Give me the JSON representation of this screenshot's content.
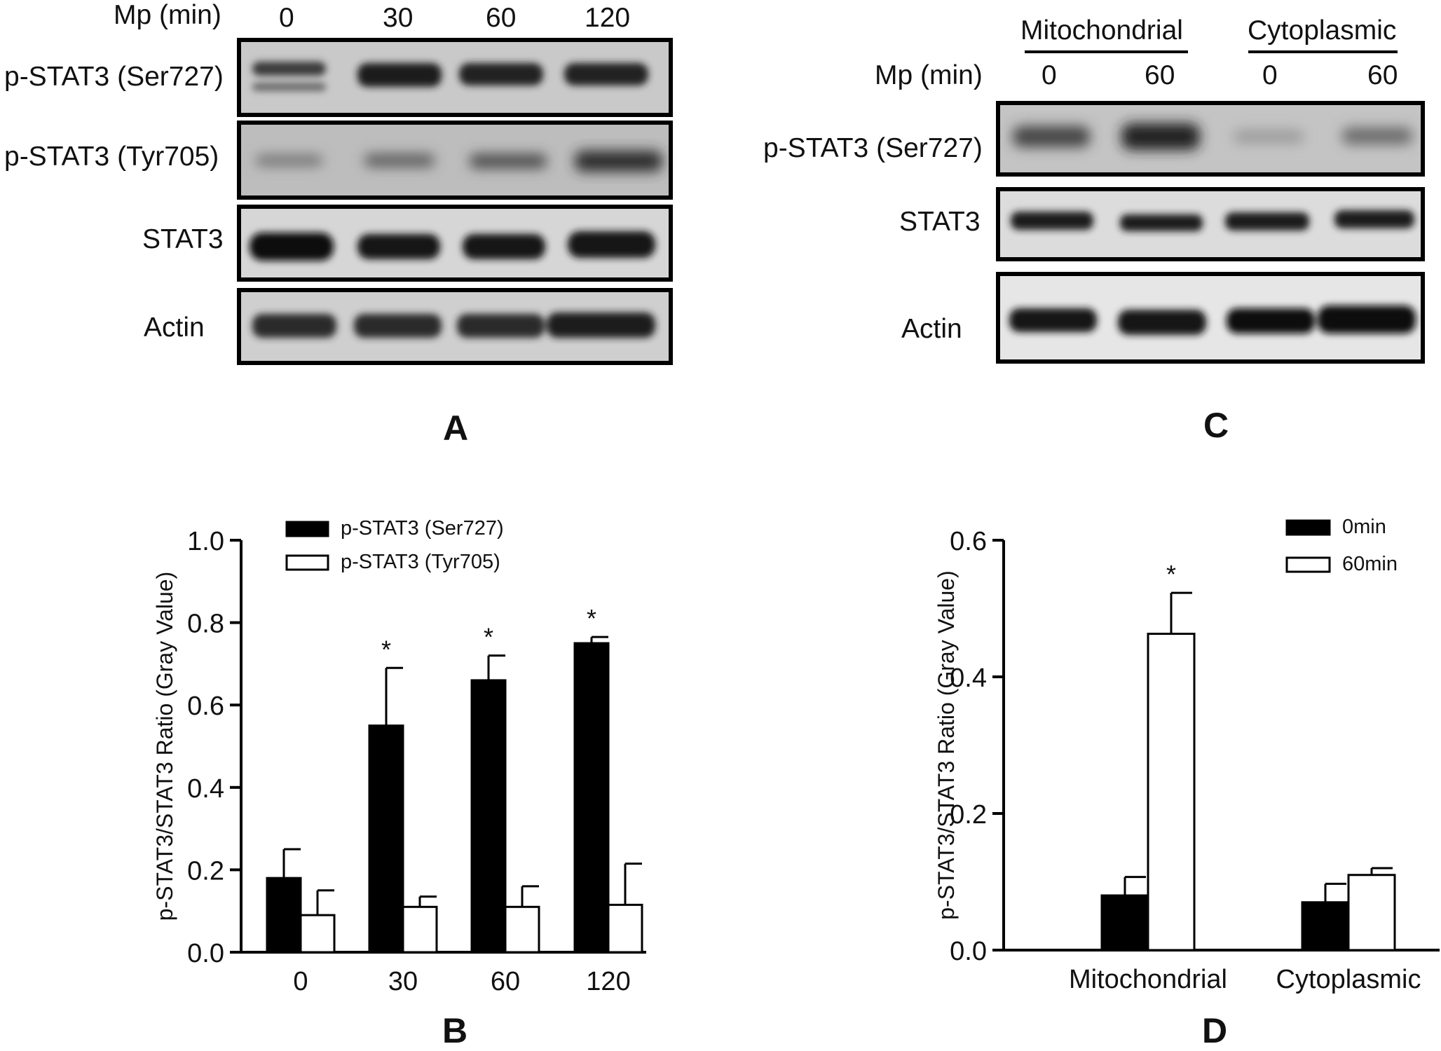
{
  "panel_a": {
    "letter": "A",
    "mp_label": "Mp (min)",
    "lanes": [
      "0",
      "30",
      "60",
      "120"
    ],
    "rows": [
      "p-STAT3 (Ser727)",
      "p-STAT3 (Tyr705)",
      "STAT3",
      "Actin"
    ]
  },
  "panel_c": {
    "letter": "C",
    "fraction_labels": [
      "Mitochondrial",
      "Cytoplasmic"
    ],
    "mp_label": "Mp (min)",
    "lanes": [
      "0",
      "60",
      "0",
      "60"
    ],
    "rows": [
      "p-STAT3 (Ser727)",
      "STAT3",
      "Actin"
    ]
  },
  "chart_data": [
    {
      "panel": "B",
      "type": "bar",
      "ylabel": "p-STAT3/STAT3 Ratio (Gray Value)",
      "xlabel": "",
      "categories": [
        "0",
        "30",
        "60",
        "120"
      ],
      "ylim": [
        0,
        1.0
      ],
      "yticks": [
        "0.0",
        "0.2",
        "0.4",
        "0.6",
        "0.8",
        "1.0"
      ],
      "legend_position": "top-left",
      "series": [
        {
          "name": "p-STAT3 (Ser727)",
          "color": "#000000",
          "values": [
            0.18,
            0.55,
            0.66,
            0.75
          ],
          "errors": [
            0.07,
            0.14,
            0.06,
            0.015
          ]
        },
        {
          "name": "p-STAT3 (Tyr705)",
          "color": "#ffffff",
          "values": [
            0.09,
            0.11,
            0.11,
            0.115
          ],
          "errors": [
            0.06,
            0.025,
            0.05,
            0.1
          ]
        }
      ],
      "significance": [
        "",
        "*",
        "*",
        "*"
      ]
    },
    {
      "panel": "D",
      "type": "bar",
      "ylabel": "p-STAT3/STAT3 Ratio (Gray Value)",
      "xlabel": "",
      "categories": [
        "Mitochondrial",
        "Cytoplasmic"
      ],
      "ylim": [
        0,
        0.6
      ],
      "yticks": [
        "0.0",
        "0.2",
        "0.4",
        "0.6"
      ],
      "legend_position": "top-right",
      "series": [
        {
          "name": "0min",
          "color": "#000000",
          "values": [
            0.08,
            0.07
          ],
          "errors": [
            0.027,
            0.027
          ]
        },
        {
          "name": "60min",
          "color": "#ffffff",
          "values": [
            0.463,
            0.11
          ],
          "errors": [
            0.06,
            0.01
          ]
        }
      ],
      "significance": [
        "*",
        ""
      ]
    }
  ]
}
